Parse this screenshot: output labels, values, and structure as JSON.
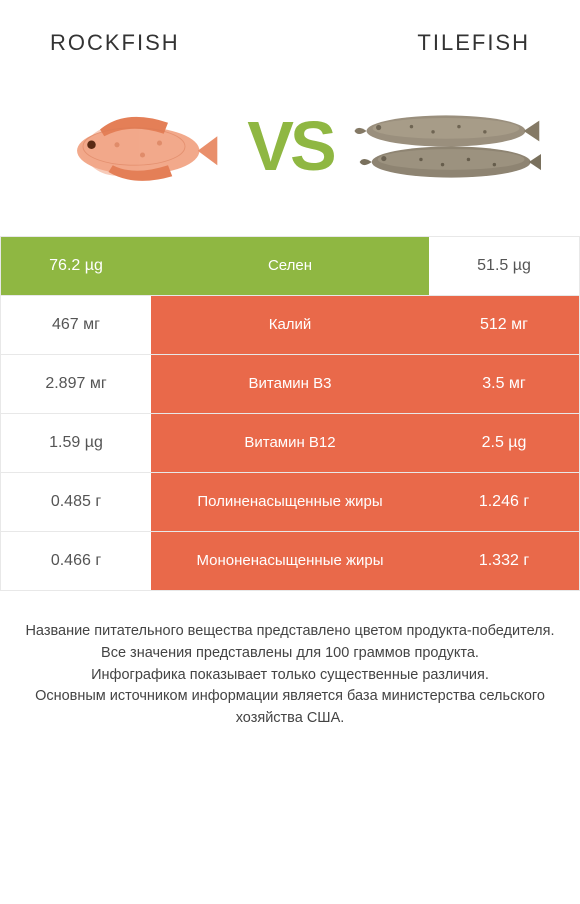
{
  "colors": {
    "left_win": "#8fb742",
    "right_win": "#e9694a",
    "neutral_bg": "#ffffff",
    "neutral_text": "#555555",
    "vs": "#8fb742",
    "header_text": "#333333"
  },
  "header": {
    "left": "Rockfish",
    "right": "Tilefish"
  },
  "vs_label": "VS",
  "rows": [
    {
      "left": "76.2 µg",
      "label": "Селен",
      "right": "51.5 µg",
      "winner": "left"
    },
    {
      "left": "467 мг",
      "label": "Калий",
      "right": "512 мг",
      "winner": "right"
    },
    {
      "left": "2.897 мг",
      "label": "Витамин B3",
      "right": "3.5 мг",
      "winner": "right"
    },
    {
      "left": "1.59 µg",
      "label": "Витамин B12",
      "right": "2.5 µg",
      "winner": "right"
    },
    {
      "left": "0.485 г",
      "label": "Полиненасыщенные жиры",
      "right": "1.246 г",
      "winner": "right"
    },
    {
      "left": "0.466 г",
      "label": "Мононенасыщенные жиры",
      "right": "1.332 г",
      "winner": "right"
    }
  ],
  "footer": {
    "line1": "Название питательного вещества представлено цветом продукта-победителя.",
    "line2": "Все значения представлены для 100 граммов продукта.",
    "line3": "Инфографика показывает только существенные различия.",
    "line4": "Основным источником информации является база министерства сельского хозяйства США."
  }
}
